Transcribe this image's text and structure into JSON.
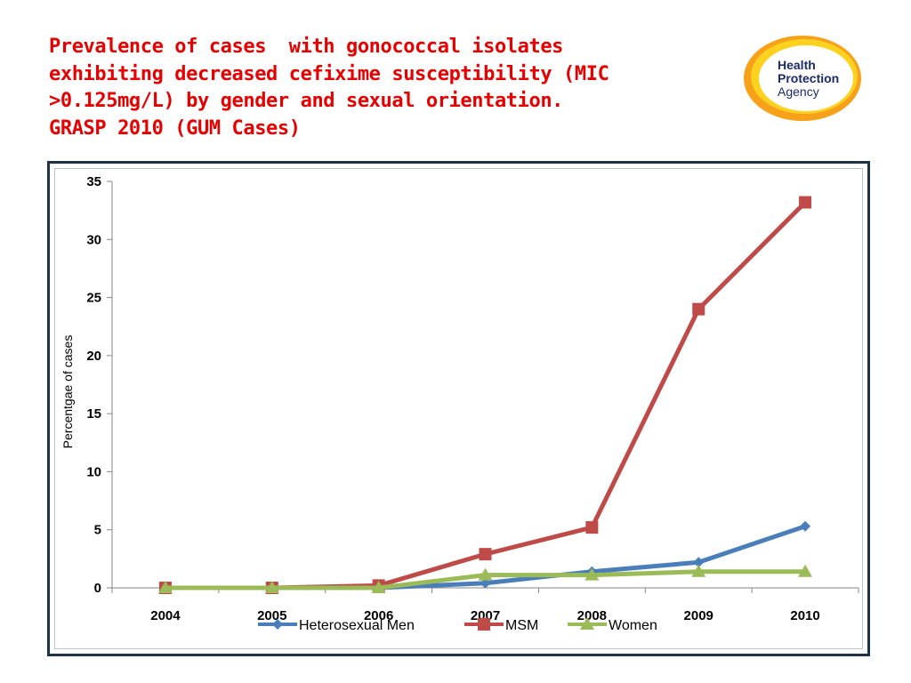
{
  "slide": {
    "title_lines": [
      "Prevalence of cases  with gonococcal isolates",
      "exhibiting decreased cefixime susceptibility (MIC",
      ">0.125mg/L) by gender and sexual orientation.",
      "GRASP 2010 (GUM Cases)"
    ],
    "title_color": "#e60000"
  },
  "logo": {
    "lines": [
      "Health",
      "Protection",
      "Agency"
    ],
    "ring_outer_color": "#f7a11a",
    "ring_inner_color": "#fdd21f",
    "text_color": "#1b2a6b"
  },
  "chart_data": {
    "type": "line",
    "title": "",
    "xlabel": "",
    "ylabel": "Percentgae of cases",
    "categories": [
      "2004",
      "2005",
      "2006",
      "2007",
      "2008",
      "2009",
      "2010"
    ],
    "ylim": [
      0,
      35
    ],
    "yticks": [
      0,
      5,
      10,
      15,
      20,
      25,
      30,
      35
    ],
    "grid": false,
    "legend_position": "bottom",
    "series": [
      {
        "name": "Heterosexual Men",
        "color": "#4a7ebb",
        "marker": "diamond",
        "values": [
          0,
          0,
          0,
          0.4,
          1.4,
          2.2,
          5.3
        ]
      },
      {
        "name": "MSM",
        "color": "#be4b48",
        "marker": "square",
        "values": [
          0,
          0,
          0.2,
          2.9,
          5.2,
          24.0,
          33.2
        ]
      },
      {
        "name": "Women",
        "color": "#9bbb59",
        "marker": "triangle",
        "values": [
          0,
          0,
          0,
          1.1,
          1.1,
          1.4,
          1.4
        ]
      }
    ]
  }
}
